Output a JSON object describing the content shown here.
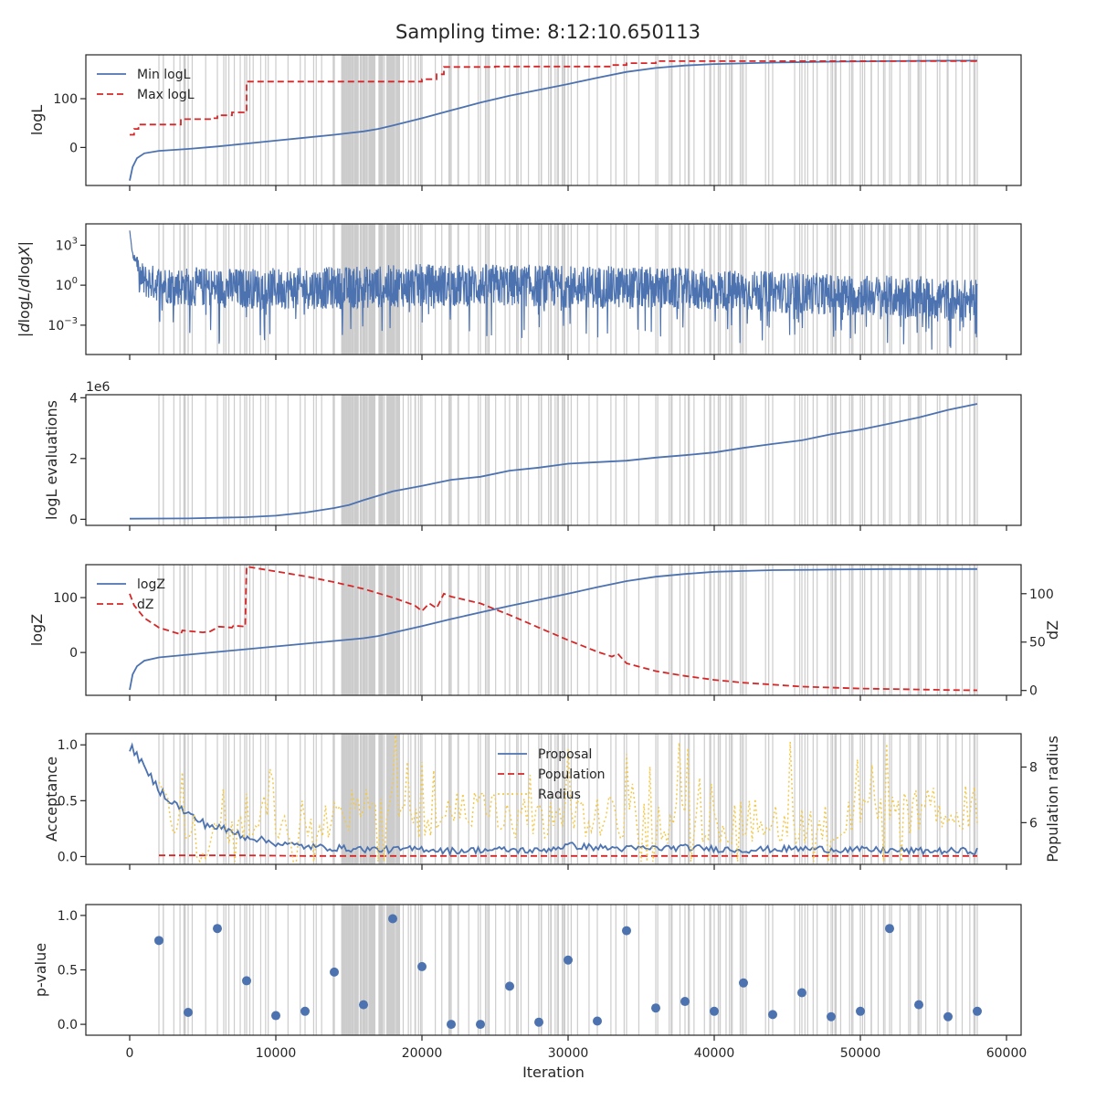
{
  "figure": {
    "title": "Sampling time: 8:12:10.650113",
    "xlabel": "Iteration",
    "x_ticks": [
      0,
      10000,
      20000,
      30000,
      40000,
      50000,
      60000
    ],
    "x_tick_labels": [
      "0",
      "10000",
      "20000",
      "30000",
      "40000",
      "50000",
      "60000"
    ],
    "xlim": [
      -3000,
      61000
    ],
    "colors": {
      "blue": "#4c72b0",
      "red": "#d62728",
      "yellow": "#f2c94c",
      "band": "#cccccc",
      "axes": "#262626"
    }
  },
  "chart_data": [
    {
      "type": "line",
      "id": "logL",
      "ylabel": "logL",
      "ylim": [
        -78,
        190
      ],
      "y_ticks": [
        0,
        100
      ],
      "y_tick_labels": [
        "0",
        "100"
      ],
      "legend": {
        "position": "upper-left",
        "entries": [
          "Min logL",
          "Max logL"
        ]
      },
      "series": [
        {
          "name": "Min logL",
          "style": "solid",
          "color": "#4c72b0",
          "x": [
            0,
            200,
            500,
            1000,
            2000,
            4000,
            6000,
            8000,
            10000,
            12000,
            14000,
            16000,
            17000,
            18000,
            20000,
            22000,
            24000,
            26000,
            28000,
            30000,
            32000,
            34000,
            36000,
            38000,
            40000,
            44000,
            48000,
            52000,
            56000,
            58000
          ],
          "y": [
            -68,
            -40,
            -22,
            -12,
            -7,
            -3,
            2,
            8,
            14,
            20,
            26,
            33,
            38,
            45,
            60,
            76,
            92,
            106,
            118,
            130,
            143,
            155,
            163,
            168,
            171,
            174,
            176,
            177,
            178,
            178
          ]
        },
        {
          "name": "Max logL",
          "style": "dashed",
          "color": "#d62728",
          "x": [
            0,
            300,
            300,
            600,
            600,
            3500,
            3500,
            5500,
            5500,
            6000,
            6000,
            7000,
            7000,
            7800,
            7800,
            8000,
            8000,
            20000,
            20000,
            21000,
            21000,
            21500,
            21500,
            25000,
            25000,
            33000,
            33000,
            34000,
            34000,
            36000,
            36000,
            58000
          ],
          "y": [
            26,
            26,
            38,
            38,
            47,
            47,
            58,
            58,
            60,
            60,
            66,
            66,
            72,
            72,
            74,
            74,
            135,
            135,
            140,
            140,
            150,
            150,
            165,
            165,
            166,
            166,
            169,
            169,
            173,
            173,
            177,
            177
          ]
        }
      ]
    },
    {
      "type": "line",
      "id": "dlogL",
      "ylabel": "|dlogL/dlogX|",
      "yscale": "log",
      "ylim": [
        -5.2,
        4.6
      ],
      "y_ticks": [
        -3,
        0,
        3
      ],
      "y_tick_labels": [
        "10^-3",
        "10^0",
        "10^3"
      ],
      "series": [
        {
          "name": "",
          "style": "solid",
          "color": "#4c72b0",
          "noisy": true,
          "x": [
            0,
            200,
            1000,
            3000,
            6000,
            10000,
            15000,
            20000,
            25000,
            30000,
            35000,
            40000,
            45000,
            50000,
            55000,
            58000
          ],
          "y_upper": [
            4.1,
            2.5,
            1.6,
            1.4,
            1.3,
            1.3,
            1.4,
            1.6,
            1.6,
            1.5,
            1.4,
            1.2,
            1.0,
            0.8,
            0.6,
            0.4
          ],
          "y_lower": [
            1.5,
            0.0,
            -1.0,
            -1.5,
            -1.7,
            -1.8,
            -1.8,
            -1.6,
            -1.6,
            -1.7,
            -1.8,
            -1.9,
            -2.1,
            -2.3,
            -2.6,
            -2.8
          ],
          "y_spikes_min": [
            -4.3,
            -4.4,
            -4.1,
            -3.9,
            -4.6,
            -4.2,
            -4.0,
            -4.2,
            -4.1,
            -4.0,
            -4.3,
            -4.5,
            -4.4,
            -4.6,
            -4.9,
            -4.4
          ]
        }
      ]
    },
    {
      "type": "line",
      "id": "evals",
      "ylabel": "logL evaluations",
      "offset_label": "1e6",
      "ylim": [
        -0.2,
        4.1
      ],
      "y_ticks": [
        0,
        2,
        4
      ],
      "y_tick_labels": [
        "0",
        "2",
        "4"
      ],
      "series": [
        {
          "name": "",
          "style": "solid",
          "color": "#4c72b0",
          "x": [
            0,
            4000,
            8000,
            10000,
            12000,
            14000,
            15000,
            16000,
            18000,
            20000,
            22000,
            24000,
            26000,
            28000,
            30000,
            32000,
            34000,
            36000,
            38000,
            40000,
            42000,
            44000,
            46000,
            48000,
            50000,
            52000,
            54000,
            56000,
            58000
          ],
          "y": [
            0.02,
            0.03,
            0.07,
            0.12,
            0.22,
            0.37,
            0.47,
            0.63,
            0.92,
            1.1,
            1.3,
            1.4,
            1.6,
            1.7,
            1.83,
            1.88,
            1.93,
            2.03,
            2.11,
            2.2,
            2.35,
            2.48,
            2.6,
            2.8,
            2.95,
            3.15,
            3.35,
            3.6,
            3.8
          ]
        }
      ]
    },
    {
      "type": "line",
      "id": "logZ",
      "ylabel": "logZ",
      "ylim": [
        -78,
        160
      ],
      "y_ticks": [
        0,
        100
      ],
      "y_tick_labels": [
        "0",
        "100"
      ],
      "ylabel_right": "dZ",
      "ylim_right": [
        -5,
        130
      ],
      "y_ticks_right": [
        0,
        50,
        100
      ],
      "y_tick_labels_right": [
        "0",
        "50",
        "100"
      ],
      "legend": {
        "position": "upper-left",
        "entries": [
          "logZ",
          "dZ"
        ]
      },
      "series": [
        {
          "name": "logZ",
          "style": "solid",
          "color": "#4c72b0",
          "axis": "left",
          "x": [
            0,
            200,
            500,
            1000,
            2000,
            4000,
            6000,
            8000,
            10000,
            12000,
            14000,
            16000,
            17000,
            18000,
            20000,
            22000,
            24000,
            26000,
            28000,
            30000,
            32000,
            34000,
            36000,
            38000,
            40000,
            44000,
            48000,
            52000,
            56000,
            58000
          ],
          "y": [
            -68,
            -40,
            -25,
            -15,
            -9,
            -4,
            1,
            6,
            11,
            16,
            21,
            26,
            30,
            36,
            48,
            61,
            73,
            85,
            96,
            107,
            119,
            130,
            138,
            143,
            147,
            150,
            151,
            152,
            152,
            152
          ]
        },
        {
          "name": "dZ",
          "style": "dashed",
          "color": "#d62728",
          "axis": "right",
          "x": [
            0,
            300,
            1000,
            2000,
            3500,
            3600,
            5000,
            5500,
            6000,
            6100,
            7000,
            7100,
            7900,
            8000,
            10000,
            12000,
            14000,
            16000,
            18000,
            19500,
            20000,
            20500,
            21000,
            21500,
            22000,
            24000,
            26000,
            28000,
            30000,
            32000,
            33000,
            33400,
            34000,
            36000,
            38000,
            40000,
            42000,
            44000,
            46000,
            48000,
            50000,
            52000,
            54000,
            56000,
            58000
          ],
          "y": [
            100,
            88,
            75,
            65,
            58,
            62,
            60,
            61,
            65,
            66,
            65,
            67,
            66,
            128,
            123,
            118,
            112,
            105,
            96,
            88,
            82,
            90,
            85,
            100,
            97,
            90,
            78,
            65,
            52,
            40,
            35,
            38,
            28,
            20,
            15,
            11,
            8,
            6,
            4,
            3,
            2,
            1.5,
            1,
            0.5,
            0.2
          ]
        }
      ]
    },
    {
      "type": "line",
      "id": "acceptance",
      "ylabel": "Acceptance",
      "ylim": [
        -0.07,
        1.1
      ],
      "y_ticks": [
        0,
        0.5,
        1
      ],
      "y_tick_labels": [
        "0.0",
        "0.5",
        "1.0"
      ],
      "ylabel_right": "Population radius",
      "ylim_right": [
        4.5,
        9.2
      ],
      "y_ticks_right": [
        6,
        8
      ],
      "y_tick_labels_right": [
        "6",
        "8"
      ],
      "legend": {
        "position": "upper-center",
        "entries": [
          "Proposal",
          "Population",
          "Radius"
        ]
      },
      "series": [
        {
          "name": "Proposal",
          "style": "solid",
          "color": "#4c72b0",
          "axis": "left",
          "x": [
            0,
            500,
            1000,
            1500,
            2000,
            3000,
            4000,
            5000,
            6000,
            8000,
            10000,
            12000,
            15000,
            18000,
            20000,
            22000,
            24000,
            26000,
            28000,
            30000,
            32000,
            34000,
            38000,
            42000,
            46000,
            50000,
            54000,
            58000
          ],
          "y": [
            0.98,
            0.92,
            0.78,
            0.7,
            0.6,
            0.48,
            0.38,
            0.3,
            0.26,
            0.18,
            0.12,
            0.09,
            0.07,
            0.06,
            0.07,
            0.05,
            0.06,
            0.06,
            0.05,
            0.1,
            0.08,
            0.07,
            0.08,
            0.06,
            0.07,
            0.06,
            0.05,
            0.05
          ]
        },
        {
          "name": "Population",
          "style": "dashed",
          "color": "#d62728",
          "axis": "left",
          "x": [
            2000,
            4000,
            8000,
            12000,
            20000,
            30000,
            40000,
            50000,
            58000
          ],
          "y": [
            0.01,
            0.01,
            0.01,
            0.005,
            0.005,
            0.005,
            0.005,
            0.005,
            0.005
          ]
        },
        {
          "name": "Radius",
          "style": "dotted",
          "color": "#f2c94c",
          "axis": "right",
          "noisy": true,
          "x": [
            2000,
            3000,
            5000,
            8000,
            12000,
            16000,
            18000,
            20000,
            24000,
            28000,
            32000,
            36000,
            40000,
            44000,
            48000,
            52000,
            56000,
            58000
          ],
          "y": [
            7.2,
            6.0,
            5.3,
            6.3,
            6.0,
            6.5,
            6.6,
            6.2,
            6.4,
            6.0,
            6.2,
            6.0,
            6.0,
            6.1,
            6.0,
            6.2,
            6.6,
            6.5
          ]
        }
      ]
    },
    {
      "type": "scatter",
      "id": "pvalue",
      "ylabel": "p-value",
      "ylim": [
        -0.1,
        1.1
      ],
      "y_ticks": [
        0,
        0.5,
        1
      ],
      "y_tick_labels": [
        "0.0",
        "0.5",
        "1.0"
      ],
      "series": [
        {
          "name": "",
          "color": "#4c72b0",
          "x": [
            2000,
            4000,
            6000,
            8000,
            10000,
            12000,
            14000,
            16000,
            18000,
            20000,
            22000,
            24000,
            26000,
            28000,
            30000,
            32000,
            34000,
            36000,
            38000,
            40000,
            42000,
            44000,
            46000,
            48000,
            50000,
            52000,
            54000,
            56000,
            58000
          ],
          "y": [
            0.77,
            0.11,
            0.88,
            0.4,
            0.08,
            0.12,
            0.48,
            0.18,
            0.97,
            0.53,
            0.0,
            0.0,
            0.35,
            0.02,
            0.59,
            0.03,
            0.86,
            0.15,
            0.21,
            0.12,
            0.38,
            0.09,
            0.29,
            0.07,
            0.12,
            0.88,
            0.18,
            0.07,
            0.12
          ]
        }
      ]
    }
  ]
}
